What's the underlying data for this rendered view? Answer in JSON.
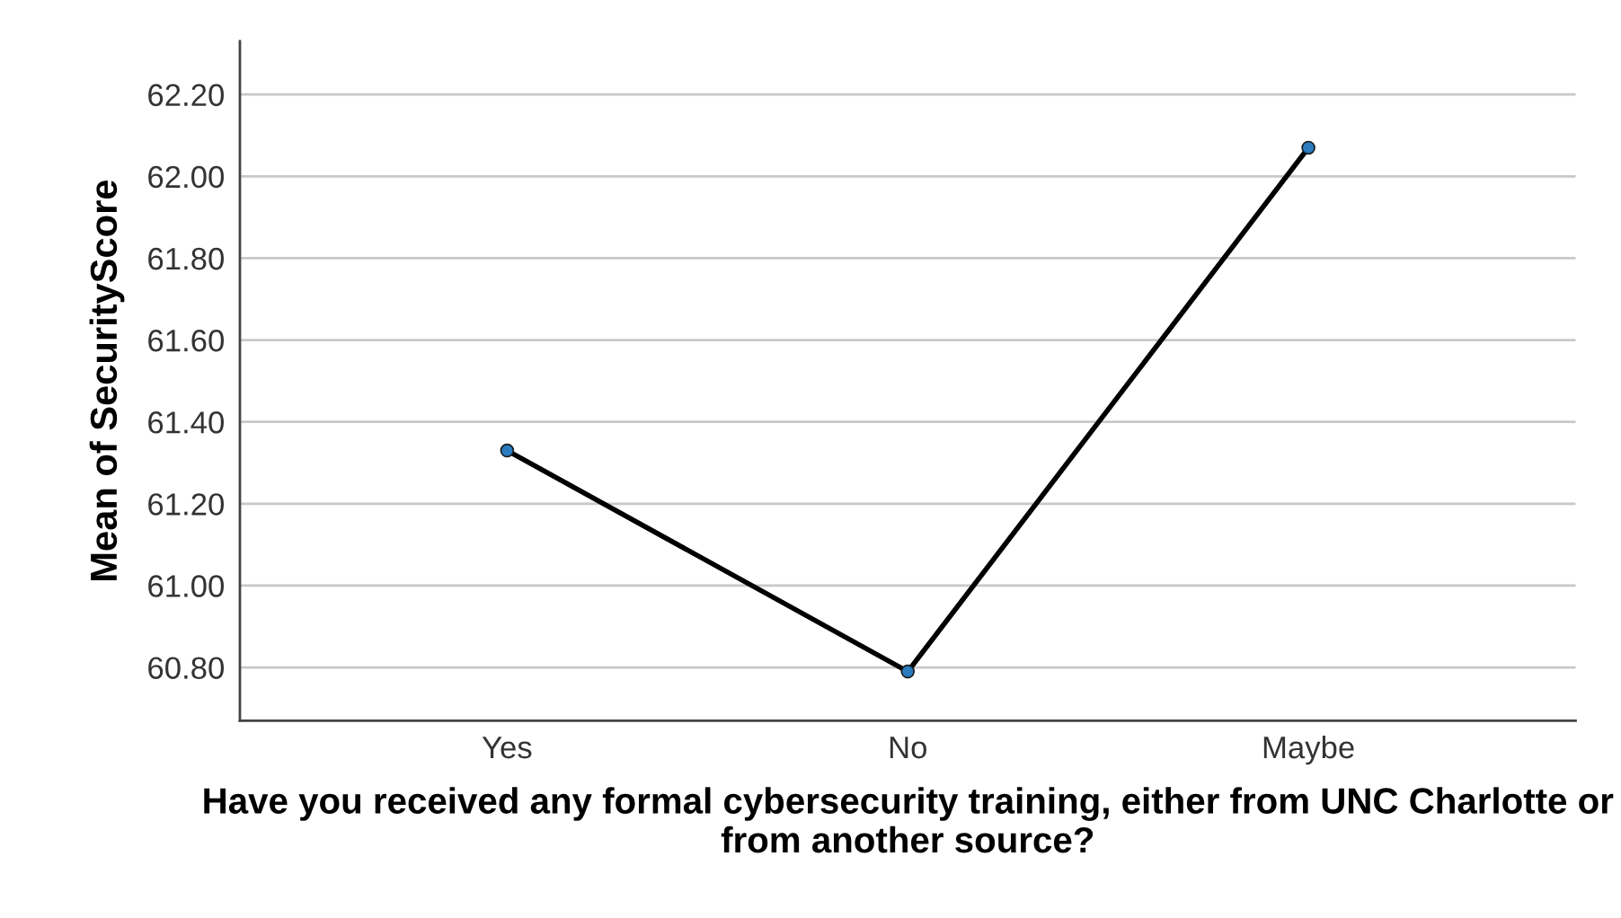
{
  "chart_data": {
    "type": "line",
    "xlabel": "Have you received any formal cybersecurity training, either from UNC Charlotte or from another source?",
    "ylabel": "Mean of SecurityScore",
    "categories": [
      "Yes",
      "No",
      "Maybe"
    ],
    "series": [
      {
        "color": "#000000",
        "values": [
          61.33,
          60.79,
          62.07
        ]
      }
    ],
    "ylim": [
      60.67,
      62.33
    ],
    "yticks": [
      {
        "value": 60.8,
        "label": "60.80"
      },
      {
        "value": 61.0,
        "label": "61.00"
      },
      {
        "value": 61.2,
        "label": "61.20"
      },
      {
        "value": 61.4,
        "label": "61.40"
      },
      {
        "value": 61.6,
        "label": "61.60"
      },
      {
        "value": 61.8,
        "label": "61.80"
      },
      {
        "value": 62.0,
        "label": "62.00"
      },
      {
        "value": 62.2,
        "label": "62.20"
      }
    ],
    "grid": "y",
    "marker": "circle",
    "line_style": "solid"
  }
}
